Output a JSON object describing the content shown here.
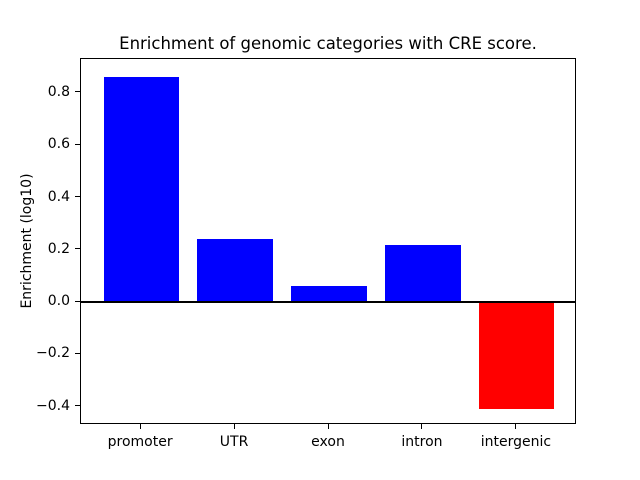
{
  "figure": {
    "background": "#ffffff",
    "text_color": "#000000"
  },
  "chart_data": {
    "type": "bar",
    "title": "Enrichment of genomic categories with CRE score.",
    "xlabel": "",
    "ylabel": "Enrichment (log10)",
    "categories": [
      "promoter",
      "UTR",
      "exon",
      "intron",
      "intergenic"
    ],
    "values": [
      0.86,
      0.24,
      0.06,
      0.22,
      -0.41
    ],
    "positive_color": "#0000ff",
    "negative_color": "#ff0000",
    "bar_colors": [
      "#0000ff",
      "#0000ff",
      "#0000ff",
      "#0000ff",
      "#ff0000"
    ],
    "bar_width": 0.8,
    "xlim": [
      -0.64,
      4.64
    ],
    "ylim": [
      -0.47,
      0.93
    ],
    "yticks": [
      0.8,
      0.6,
      0.4,
      0.2,
      0.0,
      -0.2,
      -0.4
    ],
    "ytick_labels": [
      "0.8",
      "0.6",
      "0.4",
      "0.2",
      "0.0",
      "−0.2",
      "−0.4"
    ],
    "grid": false,
    "legend": null,
    "frame_color": "#000000",
    "zero_line": {
      "show": true,
      "color": "#000000",
      "linewidth": 2.5
    }
  }
}
